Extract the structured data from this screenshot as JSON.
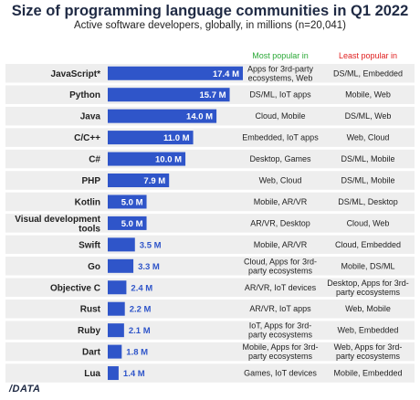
{
  "header": {
    "title": "Size of programming language communities in Q1 2022",
    "subtitle": "Active software developers, globally, in millions (n=20,041)"
  },
  "columns": {
    "most_popular": "Most popular in",
    "least_popular": "Least popular in"
  },
  "colors": {
    "bar": "#2f55c9",
    "row_band": "#eeeeee",
    "most_header": "#2aa836",
    "least_header": "#e02020",
    "title": "#1f2a44"
  },
  "footer": {
    "logo": "/DATA"
  },
  "chart_data": {
    "type": "bar",
    "orientation": "horizontal",
    "title": "Size of programming language communities in Q1 2022",
    "subtitle": "Active software developers, globally, in millions (n=20,041)",
    "unit": "M",
    "categories": [
      "JavaScript*",
      "Python",
      "Java",
      "C/C++",
      "C#",
      "PHP",
      "Kotlin",
      "Visual development tools",
      "Swift",
      "Go",
      "Objective C",
      "Rust",
      "Ruby",
      "Dart",
      "Lua"
    ],
    "values": [
      17.4,
      15.7,
      14.0,
      11.0,
      10.0,
      7.9,
      5.0,
      5.0,
      3.5,
      3.3,
      2.4,
      2.2,
      2.1,
      1.8,
      1.4
    ],
    "value_labels": [
      "17.4 M",
      "15.7 M",
      "14.0 M",
      "11.0 M",
      "10.0 M",
      "7.9 M",
      "5.0 M",
      "5.0 M",
      "3.5 M",
      "3.3 M",
      "2.4 M",
      "2.2 M",
      "2.1 M",
      "1.8 M",
      "1.4 M"
    ],
    "most_popular_in": [
      [
        "Apps for 3rd-party",
        "ecosystems, Web"
      ],
      [
        "DS/ML, IoT apps"
      ],
      [
        "Cloud, Mobile"
      ],
      [
        "Embedded, IoT apps"
      ],
      [
        "Desktop, Games"
      ],
      [
        "Web, Cloud"
      ],
      [
        "Mobile, AR/VR"
      ],
      [
        "AR/VR, Desktop"
      ],
      [
        "Mobile, AR/VR"
      ],
      [
        "Cloud, Apps for 3rd-",
        "party ecosystems"
      ],
      [
        "AR/VR, IoT devices"
      ],
      [
        "AR/VR, IoT apps"
      ],
      [
        "IoT, Apps for 3rd-",
        "party ecosystems"
      ],
      [
        "Mobile, Apps for 3rd-",
        "party ecosystems"
      ],
      [
        "Games, IoT devices"
      ]
    ],
    "least_popular_in": [
      [
        "DS/ML, Embedded"
      ],
      [
        "Mobile, Web"
      ],
      [
        "DS/ML, Web"
      ],
      [
        "Web, Cloud"
      ],
      [
        "DS/ML, Mobile"
      ],
      [
        "DS/ML, Mobile"
      ],
      [
        "DS/ML, Desktop"
      ],
      [
        "Cloud, Web"
      ],
      [
        "Cloud, Embedded"
      ],
      [
        "Mobile, DS/ML"
      ],
      [
        "Desktop, Apps for 3rd-",
        "party ecosystems"
      ],
      [
        "Web, Mobile"
      ],
      [
        "Web, Embedded"
      ],
      [
        "Web, Apps for 3rd-",
        "party ecosystems"
      ],
      [
        "Mobile, Embedded"
      ]
    ],
    "xlim": [
      0,
      17.4
    ]
  }
}
